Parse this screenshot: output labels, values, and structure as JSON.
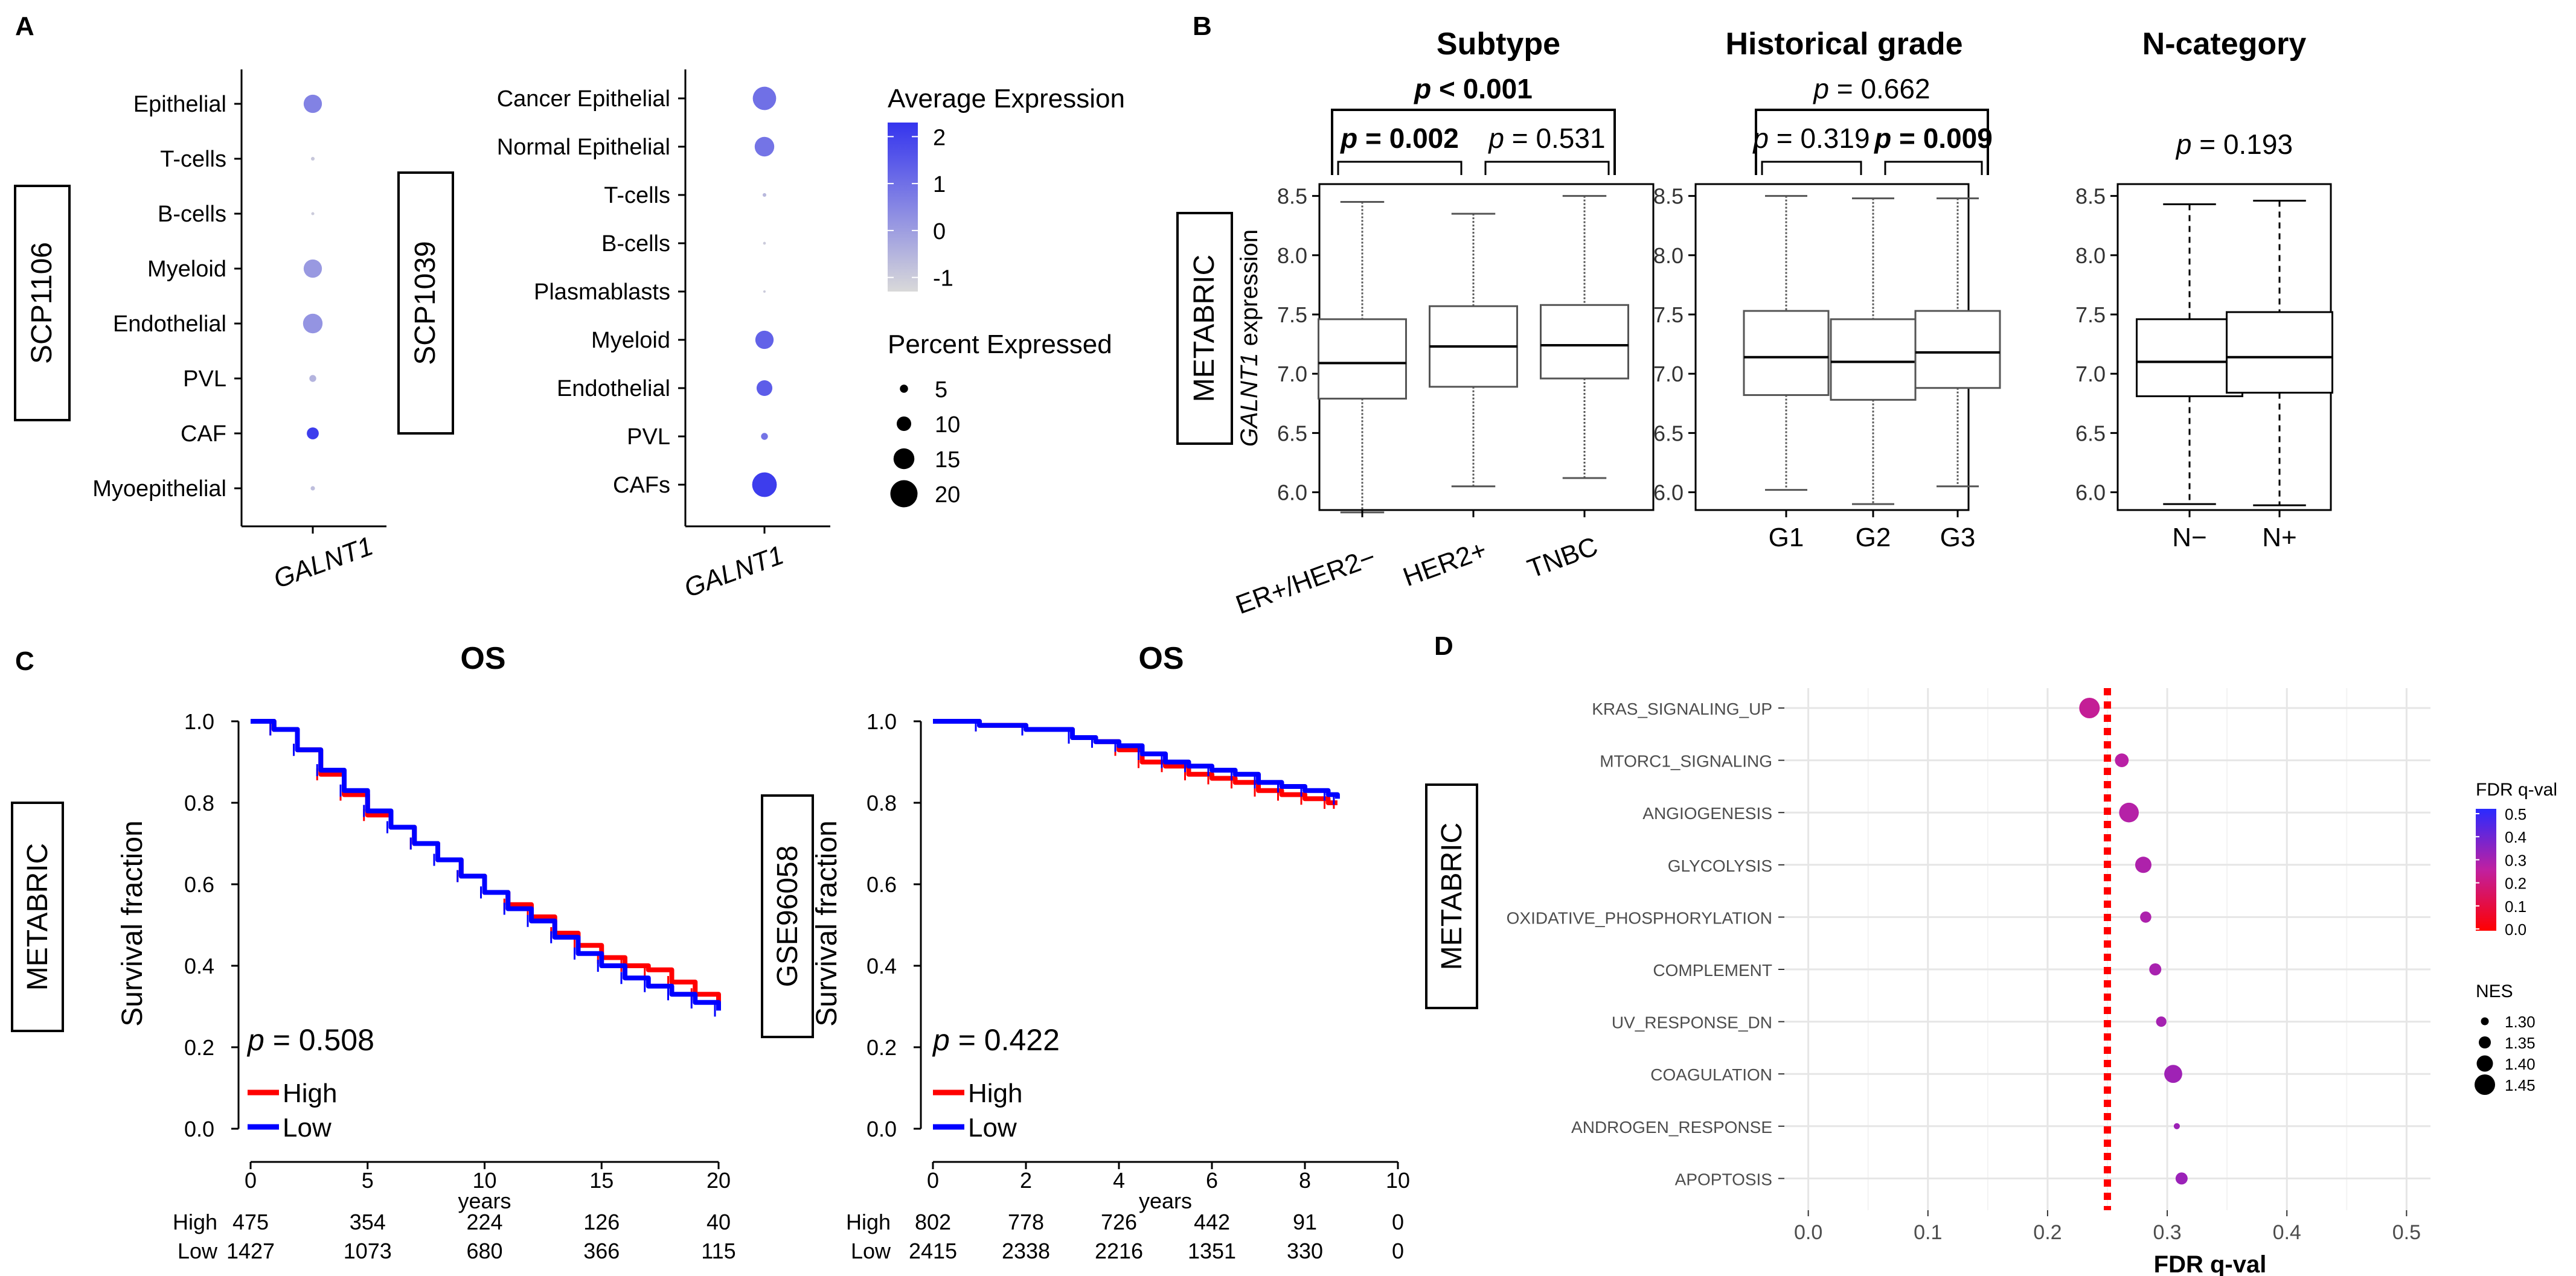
{
  "panel_labels": {
    "a": "A",
    "b": "B",
    "c": "C",
    "d": "D"
  },
  "panel_a": {
    "datasets": [
      {
        "name": "SCP1106",
        "gene": "GALNT1",
        "cells": [
          "Epithelial",
          "T-cells",
          "B-cells",
          "Myeloid",
          "Endothelial",
          "PVL",
          "CAF",
          "Myoepithelial"
        ],
        "avg_expr": [
          0.6,
          -0.9,
          -1.0,
          0.1,
          0.2,
          -0.5,
          2.1,
          -0.7
        ],
        "pct_expr": [
          13,
          1.5,
          1,
          13,
          14,
          4,
          8,
          2
        ]
      },
      {
        "name": "SCP1039",
        "gene": "GALNT1",
        "cells": [
          "Cancer Epithelial",
          "Normal Epithelial",
          "T-cells",
          "B-cells",
          "Plasmablasts",
          "Myeloid",
          "Endothelial",
          "PVL",
          "CAFs"
        ],
        "avg_expr": [
          1.0,
          0.9,
          -0.6,
          -1.0,
          -1.0,
          1.3,
          1.4,
          0.9,
          2.1
        ],
        "pct_expr": [
          17,
          14,
          1.5,
          0.8,
          0.5,
          13,
          11,
          4,
          18
        ]
      }
    ],
    "legend": {
      "color_title": "Average Expression",
      "color_ticks": [
        "2",
        "1",
        "0",
        "-1"
      ],
      "color_range": [
        -1.3,
        2.3
      ],
      "size_title": "Percent Expressed",
      "size_ticks": [
        "5",
        "10",
        "15",
        "20"
      ],
      "size_values": [
        5,
        10,
        15,
        20
      ],
      "low_color": "#d9d9d9",
      "high_color": "#3434ee"
    }
  },
  "panel_b": {
    "dataset": "METABRIC",
    "ylabel_gene": "GALNT1",
    "ylabel_rest": " expression",
    "ylim": [
      5.85,
      8.6
    ],
    "yticks": [
      "8.5",
      "8.0",
      "7.5",
      "7.0",
      "6.5",
      "6.0"
    ],
    "ytick_values": [
      8.5,
      8.0,
      7.5,
      7.0,
      6.5,
      6.0
    ],
    "chart_data": [
      {
        "type": "boxplot",
        "title": "Subtype",
        "categories": [
          "ER+/HER2−",
          "HER2+",
          "TNBC"
        ],
        "boxes": [
          {
            "min": 5.83,
            "q1": 6.79,
            "median": 7.09,
            "q3": 7.46,
            "max": 8.45
          },
          {
            "min": 6.05,
            "q1": 6.89,
            "median": 7.23,
            "q3": 7.57,
            "max": 8.35
          },
          {
            "min": 6.12,
            "q1": 6.96,
            "median": 7.24,
            "q3": 7.58,
            "max": 8.5
          }
        ],
        "pvalues": [
          {
            "label": "p < 0.001",
            "bold": true,
            "from": 0,
            "to": 2,
            "level": 2
          },
          {
            "label": "p = 0.002",
            "bold": true,
            "from": 0,
            "to": 1,
            "level": 1
          },
          {
            "label": "p = 0.531",
            "bold": false,
            "from": 1,
            "to": 2,
            "level": 1
          }
        ]
      },
      {
        "type": "boxplot",
        "title": "Historical grade",
        "categories": [
          "G1",
          "G2",
          "G3"
        ],
        "boxes": [
          {
            "min": 6.02,
            "q1": 6.82,
            "median": 7.14,
            "q3": 7.53,
            "max": 8.5
          },
          {
            "min": 5.9,
            "q1": 6.78,
            "median": 7.1,
            "q3": 7.46,
            "max": 8.48
          },
          {
            "min": 6.05,
            "q1": 6.88,
            "median": 7.18,
            "q3": 7.53,
            "max": 8.48
          }
        ],
        "pvalues": [
          {
            "label": "p = 0.662",
            "bold": false,
            "from": 0,
            "to": 2,
            "level": 2
          },
          {
            "label": "p = 0.319",
            "bold": false,
            "from": 0,
            "to": 1,
            "level": 1
          },
          {
            "label": "p = 0.009",
            "bold": true,
            "from": 1,
            "to": 2,
            "level": 1
          }
        ]
      },
      {
        "type": "boxplot",
        "title": "N-category",
        "categories": [
          "N−",
          "N+"
        ],
        "boxes": [
          {
            "min": 5.9,
            "q1": 6.81,
            "median": 7.1,
            "q3": 7.46,
            "max": 8.43
          },
          {
            "min": 5.89,
            "q1": 6.84,
            "median": 7.14,
            "q3": 7.52,
            "max": 8.46
          }
        ],
        "pvalues": [
          {
            "label": "p = 0.193",
            "bold": false,
            "from": 0,
            "to": 1,
            "level": 0
          }
        ]
      }
    ]
  },
  "panel_c": {
    "chart_data": [
      {
        "type": "line",
        "title": "OS",
        "dataset": "METABRIC",
        "ylabel": "Survival fraction",
        "xlabel": "years",
        "xlim": [
          0,
          20
        ],
        "xticks": [
          "0",
          "5",
          "10",
          "15",
          "20"
        ],
        "xtick_values": [
          0,
          5,
          10,
          15,
          20
        ],
        "ylim": [
          0,
          1
        ],
        "yticks": [
          "1.0",
          "0.8",
          "0.6",
          "0.4",
          "0.2",
          "0.0"
        ],
        "ytick_values": [
          1.0,
          0.8,
          0.6,
          0.4,
          0.2,
          0.0
        ],
        "pvalue": "0.508",
        "series": [
          {
            "name": "High",
            "color": "#ff0000",
            "x": [
              0,
              1,
              2,
              3,
              4,
              5,
              6,
              7,
              8,
              9,
              10,
              11,
              12,
              13,
              14,
              15,
              16,
              17,
              18,
              19,
              20
            ],
            "y": [
              1.0,
              0.98,
              0.93,
              0.87,
              0.82,
              0.77,
              0.74,
              0.7,
              0.66,
              0.62,
              0.58,
              0.55,
              0.52,
              0.48,
              0.45,
              0.42,
              0.4,
              0.39,
              0.36,
              0.33,
              0.3
            ]
          },
          {
            "name": "Low",
            "color": "#0000ff",
            "x": [
              0,
              1,
              2,
              3,
              4,
              5,
              6,
              7,
              8,
              9,
              10,
              11,
              12,
              13,
              14,
              15,
              16,
              17,
              18,
              19,
              20
            ],
            "y": [
              1.0,
              0.98,
              0.93,
              0.88,
              0.83,
              0.78,
              0.74,
              0.7,
              0.66,
              0.62,
              0.58,
              0.54,
              0.51,
              0.47,
              0.43,
              0.4,
              0.37,
              0.35,
              0.33,
              0.31,
              0.29
            ]
          }
        ],
        "risk_table": {
          "labels": [
            "High",
            "Low"
          ],
          "rows": [
            [
              "475",
              "354",
              "224",
              "126",
              "40"
            ],
            [
              "1427",
              "1073",
              "680",
              "366",
              "115"
            ]
          ]
        }
      },
      {
        "type": "line",
        "title": "OS",
        "dataset": "GSE96058",
        "ylabel": "Survival fraction",
        "xlabel": "years",
        "xlim": [
          0,
          10
        ],
        "xticks": [
          "0",
          "2",
          "4",
          "6",
          "8",
          "10"
        ],
        "xtick_values": [
          0,
          2,
          4,
          6,
          8,
          10
        ],
        "ylim": [
          0,
          1
        ],
        "yticks": [
          "1.0",
          "0.8",
          "0.6",
          "0.4",
          "0.2",
          "0.0"
        ],
        "ytick_values": [
          1.0,
          0.8,
          0.6,
          0.4,
          0.2,
          0.0
        ],
        "pvalue": "0.422",
        "series": [
          {
            "name": "High",
            "color": "#ff0000",
            "x": [
              0,
              1,
              2,
              3,
              3.5,
              4,
              4.5,
              5,
              5.5,
              6,
              6.5,
              7,
              7.5,
              8,
              8.5,
              8.7
            ],
            "y": [
              1.0,
              0.99,
              0.98,
              0.96,
              0.95,
              0.93,
              0.9,
              0.89,
              0.87,
              0.86,
              0.85,
              0.83,
              0.82,
              0.81,
              0.8,
              0.8
            ]
          },
          {
            "name": "Low",
            "color": "#0000ff",
            "x": [
              0,
              1,
              2,
              3,
              3.5,
              4,
              4.5,
              5,
              5.5,
              6,
              6.5,
              7,
              7.5,
              8,
              8.5,
              8.7
            ],
            "y": [
              1.0,
              0.99,
              0.98,
              0.96,
              0.95,
              0.94,
              0.92,
              0.9,
              0.89,
              0.88,
              0.87,
              0.85,
              0.84,
              0.83,
              0.82,
              0.81
            ]
          }
        ],
        "risk_table": {
          "labels": [
            "High",
            "Low"
          ],
          "rows": [
            [
              "802",
              "778",
              "726",
              "442",
              "91",
              "0"
            ],
            [
              "2415",
              "2338",
              "2216",
              "1351",
              "330",
              "0"
            ]
          ]
        }
      }
    ]
  },
  "panel_d": {
    "dataset": "METABRIC",
    "chart_data": {
      "type": "scatter",
      "xlabel": "FDR q-val",
      "xlim": [
        -0.02,
        0.52
      ],
      "xticks": [
        "0.0",
        "0.1",
        "0.2",
        "0.3",
        "0.4",
        "0.5"
      ],
      "xtick_values": [
        0,
        0.1,
        0.2,
        0.3,
        0.4,
        0.5
      ],
      "cutoff": 0.25,
      "pathways": [
        "KRAS_SIGNALING_UP",
        "MTORC1_SIGNALING",
        "ANGIOGENESIS",
        "GLYCOLYSIS",
        "OXIDATIVE_PHOSPHORYLATION",
        "COMPLEMENT",
        "UV_RESPONSE_DN",
        "COAGULATION",
        "ANDROGEN_RESPONSE",
        "APOPTOSIS"
      ],
      "fdr": [
        0.235,
        0.262,
        0.268,
        0.28,
        0.282,
        0.29,
        0.295,
        0.305,
        0.308,
        0.312
      ],
      "nes": [
        1.45,
        1.37,
        1.44,
        1.4,
        1.34,
        1.35,
        1.33,
        1.42,
        1.28,
        1.35
      ],
      "legend": {
        "color_title": "FDR q-val",
        "color_ticks": [
          "0.5",
          "0.4",
          "0.3",
          "0.2",
          "0.1",
          "0.0"
        ],
        "size_title": "NES",
        "size_ticks": [
          "1.30",
          "1.35",
          "1.40",
          "1.45"
        ],
        "size_values": [
          1.3,
          1.35,
          1.4,
          1.45
        ]
      }
    }
  }
}
